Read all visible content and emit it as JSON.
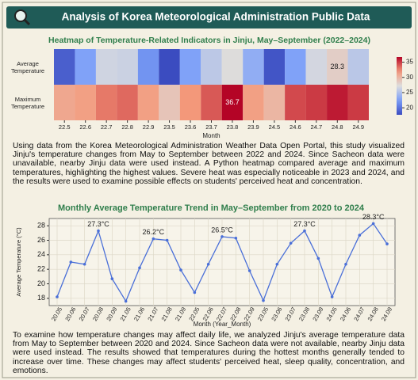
{
  "header": {
    "title": "Analysis of Korea Meteorological Administration Public Data"
  },
  "paragraphs": [
    "Using data from the Korea Meteorological Administration Weather Data Open Portal, this study visualized Jinju's temperature changes from May to September between 2022 and 2024. Since Sacheon data were unavailable, nearby Jinju data were used instead. A Python heatmap compared average and maximum temperatures, highlighting the highest values. Severe heat was especially noticeable in 2023 and 2024, and the results were used to examine possible effects on students' perceived heat and concentration.",
    "To examine how temperature changes may affect daily life, we analyzed Jinju's average temperature data from May to September between 2020 and 2024. Since Sacheon data were not available, nearby Jinju data were used instead. The results showed that temperatures during the hottest months generally tended to increase over time. These changes may affect students' perceived heat, sleep quality, concentration, and emotions."
  ],
  "chart_data": [
    {
      "type": "heatmap",
      "title": "Heatmap of Temperature-Related Indicators in Jinju, May–September (2022–2024)",
      "x": [
        "22.5",
        "22.6",
        "22.7",
        "22.8",
        "22.9",
        "23.5",
        "23.6",
        "23.7",
        "23.8",
        "23.9",
        "24.5",
        "24.6",
        "24.7",
        "24.8",
        "24.9"
      ],
      "y": [
        "Average Temperature",
        "Maximum Temperature"
      ],
      "values": [
        [
          18.8,
          22.7,
          26.5,
          26.3,
          21.8,
          17.7,
          22.7,
          25.6,
          27.3,
          23.5,
          18.2,
          22.7,
          26.7,
          28.3,
          25.5
        ],
        [
          31.0,
          31.5,
          33.0,
          33.5,
          31.5,
          29.0,
          32.0,
          34.0,
          36.7,
          31.5,
          30.0,
          34.5,
          35.0,
          36.0,
          35.0
        ]
      ],
      "value_labels": [
        [
          null,
          null,
          null,
          null,
          null,
          null,
          null,
          null,
          null,
          null,
          null,
          null,
          null,
          "28.3",
          null
        ],
        [
          null,
          null,
          null,
          null,
          null,
          null,
          null,
          null,
          "36.7",
          null,
          null,
          null,
          null,
          null,
          null
        ]
      ],
      "xlabel": "Month",
      "colormap": "coolwarm",
      "clim": [
        17.7,
        36.7
      ],
      "cticks": [
        20,
        25,
        30,
        35
      ]
    },
    {
      "type": "line",
      "title": "Monthly Average Temperature Trend in May–September from 2020 to 2024",
      "categories": [
        "20.05",
        "20.06",
        "20.07",
        "20.08",
        "20.09",
        "21.05",
        "21.06",
        "21.07",
        "21.08",
        "21.09",
        "22.05",
        "22.06",
        "22.07",
        "22.08",
        "22.09",
        "23.05",
        "23.06",
        "23.07",
        "23.08",
        "23.09",
        "24.05",
        "24.06",
        "24.07",
        "24.08",
        "24.09"
      ],
      "series": [
        {
          "name": "Average Temperature",
          "color": "#4a6fd8",
          "values": [
            18.2,
            23.0,
            22.7,
            27.3,
            20.7,
            17.6,
            22.2,
            26.2,
            26.0,
            21.9,
            18.8,
            22.7,
            26.5,
            26.3,
            21.8,
            17.7,
            22.7,
            25.6,
            27.3,
            23.5,
            18.2,
            22.7,
            26.7,
            28.3,
            25.5
          ],
          "value_labels": [
            null,
            null,
            null,
            "27.3°C",
            null,
            null,
            null,
            "26.2°C",
            null,
            null,
            null,
            null,
            "26.5°C",
            null,
            null,
            null,
            null,
            null,
            "27.3°C",
            null,
            null,
            null,
            null,
            "28.3°C",
            null
          ]
        }
      ],
      "xlabel": "Month (Year_Month)",
      "ylabel": "Average Temperature (°C)",
      "ylim": [
        17,
        29
      ],
      "yticks": [
        18,
        20,
        22,
        24,
        26,
        28
      ],
      "grid": true
    }
  ]
}
